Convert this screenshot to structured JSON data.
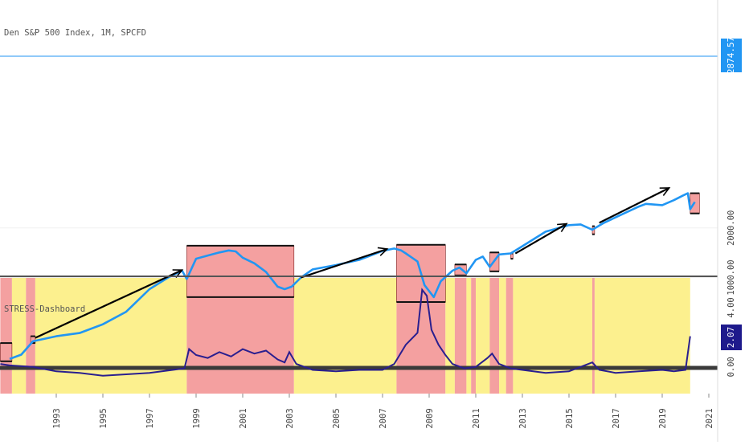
{
  "main_pane": {
    "title": "Den S&P 500 Index, 1M, SPCFD",
    "last_price": "2874.57"
  },
  "sub_pane": {
    "title": "STRESS-Dashboard",
    "last_value": "2.07"
  },
  "colors": {
    "price_line": "#2196f3",
    "stress_line": "#2a1f8f",
    "zero_line": "#3a3a3a",
    "red_zone": "#f4a0a0",
    "yellow_zone": "#fcf08e",
    "box_fill": "#f4a0a0",
    "trend_arrow": "#000000",
    "price_tag_bg": "#2196f3",
    "stress_tag_bg": "#1e1a8c"
  },
  "chart_data": [
    {
      "type": "line",
      "title": "Den S&P 500 Index, 1M, SPCFD",
      "yscale": "log",
      "y_tick_labels": [
        "1000.00",
        "2000.00"
      ],
      "x_tick_labels": [
        "1993",
        "1995",
        "1997",
        "1999",
        "2001",
        "2003",
        "2005",
        "2007",
        "2009",
        "2011",
        "2013",
        "2015",
        "2017",
        "2019",
        "2021"
      ],
      "series": [
        {
          "x": [
            1991.0,
            1991.5,
            1992.0,
            1993.0,
            1994.0,
            1995.0,
            1996.0,
            1997.0,
            1997.8,
            1998.4,
            1998.6,
            1999.0,
            1999.5,
            2000.0,
            2000.4,
            2000.7,
            2001.0,
            2001.5,
            2002.0,
            2002.5,
            2002.8,
            2003.1,
            2003.5,
            2004.0,
            2005.0,
            2006.0,
            2007.0,
            2007.5,
            2007.8,
            2008.0,
            2008.5,
            2008.8,
            2009.2,
            2009.5,
            2010.0,
            2010.3,
            2010.6,
            2011.0,
            2011.3,
            2011.6,
            2012.0,
            2012.5,
            2013.0,
            2014.0,
            2015.0,
            2015.5,
            2016.0,
            2016.5,
            2017.0,
            2018.0,
            2018.3,
            2019.0,
            2019.5,
            2019.9,
            2020.1,
            2020.2,
            2020.4
          ],
          "y": [
            320,
            340,
            410,
            440,
            460,
            520,
            620,
            850,
            1000,
            1100,
            980,
            1300,
            1360,
            1420,
            1460,
            1440,
            1320,
            1220,
            1080,
            880,
            850,
            880,
            1000,
            1120,
            1190,
            1280,
            1450,
            1500,
            1460,
            1400,
            1250,
            900,
            760,
            950,
            1100,
            1150,
            1060,
            1280,
            1340,
            1160,
            1380,
            1400,
            1550,
            1900,
            2080,
            2100,
            1950,
            2150,
            2320,
            2700,
            2800,
            2750,
            2950,
            3150,
            3250,
            2600,
            2874.57
          ]
        }
      ],
      "annotations": {
        "stress_boxes": [
          {
            "x_start": 1990.6,
            "x_end": 1991.1,
            "y_top": 400,
            "y_bottom": 310
          },
          {
            "x_start": 1991.9,
            "x_end": 1992.1,
            "y_top": 440,
            "y_bottom": 400
          },
          {
            "x_start": 1998.6,
            "x_end": 2003.2,
            "y_top": 1560,
            "y_bottom": 760
          },
          {
            "x_start": 2007.6,
            "x_end": 2009.7,
            "y_top": 1580,
            "y_bottom": 710
          },
          {
            "x_start": 2010.1,
            "x_end": 2010.6,
            "y_top": 1200,
            "y_bottom": 1030
          },
          {
            "x_start": 2011.6,
            "x_end": 2012.0,
            "y_top": 1420,
            "y_bottom": 1090
          },
          {
            "x_start": 2012.5,
            "x_end": 2012.6,
            "y_top": 1400,
            "y_bottom": 1300
          },
          {
            "x_start": 2016.0,
            "x_end": 2016.1,
            "y_top": 2050,
            "y_bottom": 1830
          },
          {
            "x_start": 2020.2,
            "x_end": 2020.6,
            "y_top": 3250,
            "y_bottom": 2450
          }
        ],
        "trend_arrows": [
          {
            "x_start": 1992.1,
            "y_start": 430,
            "x_end": 1998.4,
            "y_end": 1110
          },
          {
            "x_start": 2003.5,
            "y_start": 1000,
            "x_end": 2007.2,
            "y_end": 1490
          },
          {
            "x_start": 2012.7,
            "y_start": 1400,
            "x_end": 2014.9,
            "y_end": 2120
          },
          {
            "x_start": 2016.3,
            "y_start": 2150,
            "x_end": 2019.3,
            "y_end": 3500
          }
        ]
      }
    },
    {
      "type": "line",
      "title": "STRESS-Dashboard",
      "y_tick_labels": [
        "4.00",
        "0.00"
      ],
      "ylim": [
        -1.8,
        6.0
      ],
      "series": [
        {
          "x": [
            1990.6,
            1991.0,
            1992.0,
            1993.0,
            1994.0,
            1995.0,
            1996.0,
            1997.0,
            1998.0,
            1998.5,
            1998.7,
            1999.0,
            1999.5,
            2000.0,
            2000.5,
            2001.0,
            2001.5,
            2002.0,
            2002.5,
            2002.8,
            2003.0,
            2003.3,
            2004.0,
            2005.0,
            2006.0,
            2007.0,
            2007.5,
            2008.0,
            2008.5,
            2008.7,
            2008.9,
            2009.1,
            2009.4,
            2009.7,
            2010.0,
            2010.5,
            2011.0,
            2011.5,
            2011.7,
            2012.0,
            2012.5,
            2013.0,
            2014.0,
            2015.0,
            2016.0,
            2016.3,
            2017.0,
            2018.0,
            2019.0,
            2019.5,
            2020.0,
            2020.2
          ],
          "y": [
            0.2,
            0.1,
            0.0,
            -0.3,
            -0.4,
            -0.6,
            -0.5,
            -0.4,
            -0.2,
            -0.1,
            1.2,
            0.8,
            0.6,
            1.0,
            0.7,
            1.2,
            0.9,
            1.1,
            0.5,
            0.3,
            1.0,
            0.2,
            -0.2,
            -0.3,
            -0.2,
            -0.2,
            0.2,
            1.5,
            2.3,
            5.2,
            4.8,
            2.5,
            1.5,
            0.8,
            0.2,
            -0.1,
            0.0,
            0.6,
            0.9,
            0.2,
            -0.1,
            -0.2,
            -0.4,
            -0.3,
            0.3,
            -0.2,
            -0.4,
            -0.3,
            -0.2,
            -0.3,
            -0.2,
            2.07
          ]
        }
      ],
      "background_zones": [
        {
          "x_start": 1990.6,
          "x_end": 1991.1,
          "level": "red"
        },
        {
          "x_start": 1991.1,
          "x_end": 1991.7,
          "level": "yellow"
        },
        {
          "x_start": 1991.7,
          "x_end": 1992.1,
          "level": "red"
        },
        {
          "x_start": 1992.1,
          "x_end": 1998.6,
          "level": "yellow"
        },
        {
          "x_start": 1998.6,
          "x_end": 2003.2,
          "level": "red"
        },
        {
          "x_start": 2003.2,
          "x_end": 2007.6,
          "level": "yellow"
        },
        {
          "x_start": 2007.6,
          "x_end": 2009.7,
          "level": "red"
        },
        {
          "x_start": 2009.7,
          "x_end": 2010.1,
          "level": "yellow"
        },
        {
          "x_start": 2010.1,
          "x_end": 2010.6,
          "level": "red"
        },
        {
          "x_start": 2010.6,
          "x_end": 2010.8,
          "level": "yellow"
        },
        {
          "x_start": 2010.8,
          "x_end": 2011.0,
          "level": "red"
        },
        {
          "x_start": 2011.0,
          "x_end": 2011.6,
          "level": "yellow"
        },
        {
          "x_start": 2011.6,
          "x_end": 2012.0,
          "level": "red"
        },
        {
          "x_start": 2012.0,
          "x_end": 2012.3,
          "level": "yellow"
        },
        {
          "x_start": 2012.3,
          "x_end": 2012.6,
          "level": "red"
        },
        {
          "x_start": 2012.6,
          "x_end": 2016.0,
          "level": "yellow"
        },
        {
          "x_start": 2016.0,
          "x_end": 2016.1,
          "level": "red"
        },
        {
          "x_start": 2016.1,
          "x_end": 2020.2,
          "level": "yellow"
        }
      ]
    }
  ]
}
